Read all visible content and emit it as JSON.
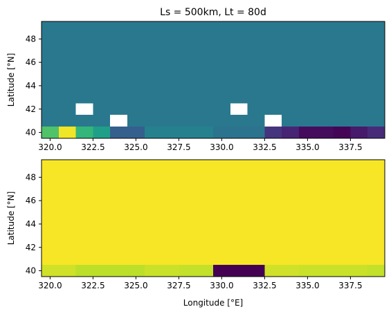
{
  "colors": {
    "viridis": [
      "#440154",
      "#482878",
      "#3e4989",
      "#31688e",
      "#26828e",
      "#1f9e89",
      "#35b779",
      "#6ece58",
      "#b5de2b",
      "#fde725"
    ],
    "missing": "#ffffff",
    "frame": "#000000"
  },
  "chart_data": [
    {
      "type": "heatmap",
      "title": "Ls = 500km, Lt = 80d",
      "xlabel": "Longitude [$^\\circ$E]",
      "ylabel": "Latitude [$^\\circ$N]",
      "xlim": [
        319.5,
        339.5
      ],
      "ylim": [
        39.5,
        49.5
      ],
      "xticks": [
        "320.0",
        "322.5",
        "325.0",
        "327.5",
        "330.0",
        "332.5",
        "335.0",
        "337.5"
      ],
      "yticks": [
        "40",
        "42",
        "44",
        "46",
        "48"
      ],
      "xticks_values": [
        320.0,
        322.5,
        325.0,
        327.5,
        330.0,
        332.5,
        335.0,
        337.5
      ],
      "yticks_values": [
        40,
        42,
        44,
        46,
        48
      ],
      "x_cell_width": 1.0,
      "y_cells": [
        {
          "y0": 39.5,
          "y1": 40.5,
          "label": "40"
        },
        {
          "y0": 40.5,
          "y1": 49.5,
          "label": "41-49"
        }
      ],
      "colormap": "viridis",
      "value_range": [
        0,
        1
      ],
      "rows": [
        {
          "y": 40,
          "cells": [
            [
              320,
              0.72
            ],
            [
              321,
              0.98
            ],
            [
              322,
              0.66
            ],
            [
              323,
              0.56
            ],
            [
              324,
              0.3
            ],
            [
              325,
              0.3
            ],
            [
              326,
              0.44
            ],
            [
              327,
              0.44
            ],
            [
              328,
              0.44
            ],
            [
              329,
              0.44
            ],
            [
              330,
              0.38
            ],
            [
              331,
              0.38
            ],
            [
              332,
              0.38
            ],
            [
              333,
              0.15
            ],
            [
              334,
              0.1
            ],
            [
              335,
              0.03
            ],
            [
              336,
              0.03
            ],
            [
              337,
              0.01
            ],
            [
              338,
              0.07
            ],
            [
              339,
              0.12
            ]
          ]
        },
        {
          "y": 41,
          "fill": 0.4,
          "missing": [
            {
              "x0": 323.5,
              "x1": 324.5,
              "y0": 40.5,
              "y1": 41.5
            },
            {
              "x0": 332.5,
              "x1": 333.5,
              "y0": 40.5,
              "y1": 41.5
            }
          ]
        },
        {
          "y": 42,
          "fill": 0.4,
          "missing": [
            {
              "x0": 321.5,
              "x1": 322.5,
              "y0": 41.5,
              "y1": 42.5
            },
            {
              "x0": 330.5,
              "x1": 331.5,
              "y0": 41.5,
              "y1": 42.5
            }
          ]
        },
        {
          "y": "43-49",
          "fill": 0.4
        }
      ]
    },
    {
      "type": "heatmap",
      "title": "",
      "xlabel": "Longitude [$^\\circ$E]",
      "ylabel": "Latitude [$^\\circ$N]",
      "xlim": [
        319.5,
        339.5
      ],
      "ylim": [
        39.5,
        49.5
      ],
      "xticks": [
        "320.0",
        "322.5",
        "325.0",
        "327.5",
        "330.0",
        "332.5",
        "335.0",
        "337.5"
      ],
      "yticks": [
        "40",
        "42",
        "44",
        "46",
        "48"
      ],
      "xticks_values": [
        320.0,
        322.5,
        325.0,
        327.5,
        330.0,
        332.5,
        335.0,
        337.5
      ],
      "yticks_values": [
        40,
        42,
        44,
        46,
        48
      ],
      "colormap": "viridis",
      "value_range": [
        0,
        1
      ],
      "rows": [
        {
          "y": 40,
          "cells": [
            [
              320,
              0.93
            ],
            [
              321,
              0.93
            ],
            [
              322,
              0.9
            ],
            [
              323,
              0.9
            ],
            [
              324,
              0.9
            ],
            [
              325,
              0.9
            ],
            [
              326,
              0.92
            ],
            [
              327,
              0.92
            ],
            [
              328,
              0.91
            ],
            [
              329,
              0.91
            ],
            [
              330,
              0.0
            ],
            [
              331,
              0.0
            ],
            [
              332,
              0.0
            ],
            [
              333,
              0.93
            ],
            [
              334,
              0.93
            ],
            [
              335,
              0.92
            ],
            [
              336,
              0.92
            ],
            [
              337,
              0.92
            ],
            [
              338,
              0.92
            ],
            [
              339,
              0.91
            ]
          ]
        },
        {
          "y": "41-49",
          "fill": 0.99
        }
      ]
    }
  ]
}
